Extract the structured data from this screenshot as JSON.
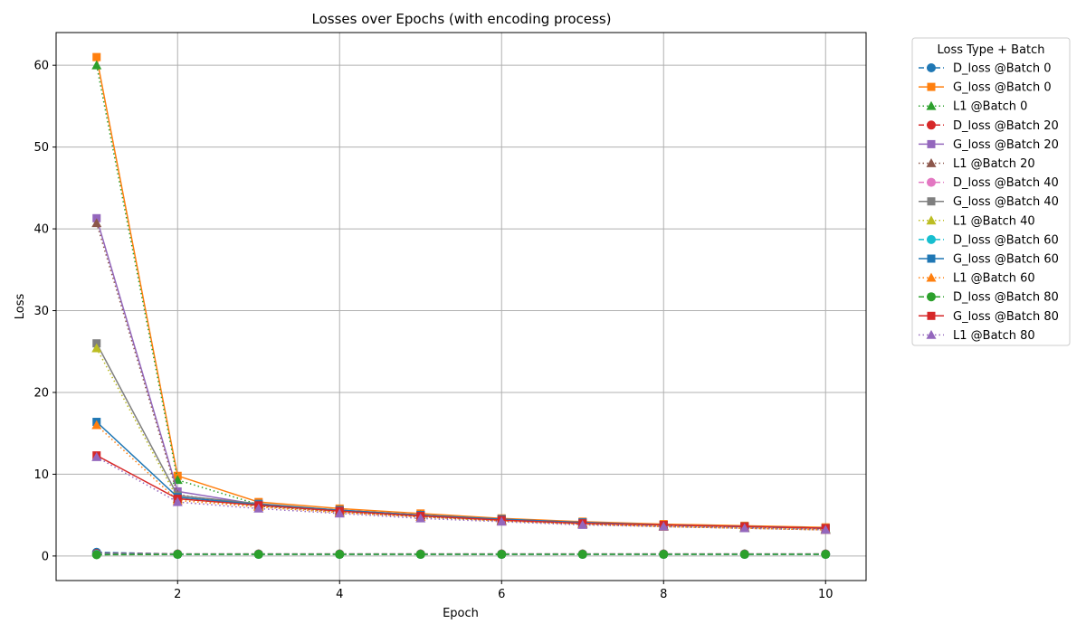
{
  "chart_data": {
    "type": "line",
    "title": "Losses over Epochs (with encoding process)",
    "xlabel": "Epoch",
    "ylabel": "Loss",
    "xlim": [
      0.5,
      10.5
    ],
    "ylim": [
      -3,
      64
    ],
    "xticks": [
      2,
      4,
      6,
      8,
      10
    ],
    "yticks": [
      0,
      10,
      20,
      30,
      40,
      50,
      60
    ],
    "grid": true,
    "legend": {
      "title": "Loss Type + Batch",
      "placement": "outside-right"
    },
    "x": [
      1,
      2,
      3,
      4,
      5,
      6,
      7,
      8,
      9,
      10
    ],
    "series": [
      {
        "name": "D_loss @Batch 0",
        "color": "#1f77b4",
        "marker": "circle",
        "linestyle": "dashed",
        "values": [
          0.45,
          0.25,
          0.25,
          0.25,
          0.25,
          0.25,
          0.25,
          0.25,
          0.25,
          0.25
        ]
      },
      {
        "name": "G_loss @Batch 0",
        "color": "#ff7f0e",
        "marker": "square",
        "linestyle": "solid",
        "values": [
          61.0,
          9.8,
          6.6,
          5.8,
          5.2,
          4.6,
          4.2,
          3.9,
          3.7,
          3.5
        ]
      },
      {
        "name": "L1 @Batch 0",
        "color": "#2ca02c",
        "marker": "triangle",
        "linestyle": "dotted",
        "values": [
          60.0,
          9.3,
          6.3,
          5.6,
          5.0,
          4.4,
          4.0,
          3.7,
          3.5,
          3.3
        ]
      },
      {
        "name": "D_loss @Batch 20",
        "color": "#d62728",
        "marker": "circle",
        "linestyle": "dashed",
        "values": [
          0.3,
          0.25,
          0.25,
          0.25,
          0.25,
          0.25,
          0.25,
          0.25,
          0.25,
          0.25
        ]
      },
      {
        "name": "G_loss @Batch 20",
        "color": "#9467bd",
        "marker": "square",
        "linestyle": "solid",
        "values": [
          41.3,
          7.9,
          6.3,
          5.6,
          5.0,
          4.5,
          4.1,
          3.8,
          3.6,
          3.4
        ]
      },
      {
        "name": "L1 @Batch 20",
        "color": "#8c564b",
        "marker": "triangle",
        "linestyle": "dotted",
        "values": [
          40.7,
          7.5,
          6.1,
          5.4,
          4.8,
          4.3,
          3.9,
          3.6,
          3.4,
          3.2
        ]
      },
      {
        "name": "D_loss @Batch 40",
        "color": "#e377c2",
        "marker": "circle",
        "linestyle": "dashed",
        "values": [
          0.2,
          0.2,
          0.2,
          0.2,
          0.2,
          0.2,
          0.2,
          0.2,
          0.2,
          0.2
        ]
      },
      {
        "name": "G_loss @Batch 40",
        "color": "#7f7f7f",
        "marker": "square",
        "linestyle": "solid",
        "values": [
          26.0,
          7.4,
          6.4,
          5.6,
          5.0,
          4.5,
          4.1,
          3.8,
          3.6,
          3.4
        ]
      },
      {
        "name": "L1 @Batch 40",
        "color": "#bcbd22",
        "marker": "triangle",
        "linestyle": "dotted",
        "values": [
          25.4,
          7.0,
          6.1,
          5.4,
          4.8,
          4.3,
          3.9,
          3.6,
          3.4,
          3.2
        ]
      },
      {
        "name": "D_loss @Batch 60",
        "color": "#17becf",
        "marker": "circle",
        "linestyle": "dashed",
        "values": [
          0.2,
          0.2,
          0.2,
          0.2,
          0.2,
          0.2,
          0.2,
          0.2,
          0.2,
          0.2
        ]
      },
      {
        "name": "G_loss @Batch 60",
        "color": "#1f77b4",
        "marker": "square",
        "linestyle": "solid",
        "values": [
          16.4,
          7.2,
          6.3,
          5.6,
          5.0,
          4.5,
          4.1,
          3.8,
          3.6,
          3.4
        ]
      },
      {
        "name": "L1 @Batch 60",
        "color": "#ff7f0e",
        "marker": "triangle",
        "linestyle": "dotted",
        "values": [
          16.0,
          6.8,
          6.0,
          5.3,
          4.8,
          4.3,
          3.9,
          3.6,
          3.4,
          3.2
        ]
      },
      {
        "name": "D_loss @Batch 80",
        "color": "#2ca02c",
        "marker": "circle",
        "linestyle": "dashed",
        "values": [
          0.15,
          0.2,
          0.2,
          0.2,
          0.2,
          0.2,
          0.2,
          0.2,
          0.2,
          0.2
        ]
      },
      {
        "name": "G_loss @Batch 80",
        "color": "#d62728",
        "marker": "square",
        "linestyle": "solid",
        "values": [
          12.3,
          7.0,
          6.2,
          5.5,
          4.9,
          4.4,
          4.0,
          3.8,
          3.6,
          3.4
        ]
      },
      {
        "name": "L1 @Batch 80",
        "color": "#9467bd",
        "marker": "triangle",
        "linestyle": "dotted",
        "values": [
          12.1,
          6.6,
          5.8,
          5.2,
          4.6,
          4.2,
          3.8,
          3.6,
          3.4,
          3.2
        ]
      }
    ]
  }
}
